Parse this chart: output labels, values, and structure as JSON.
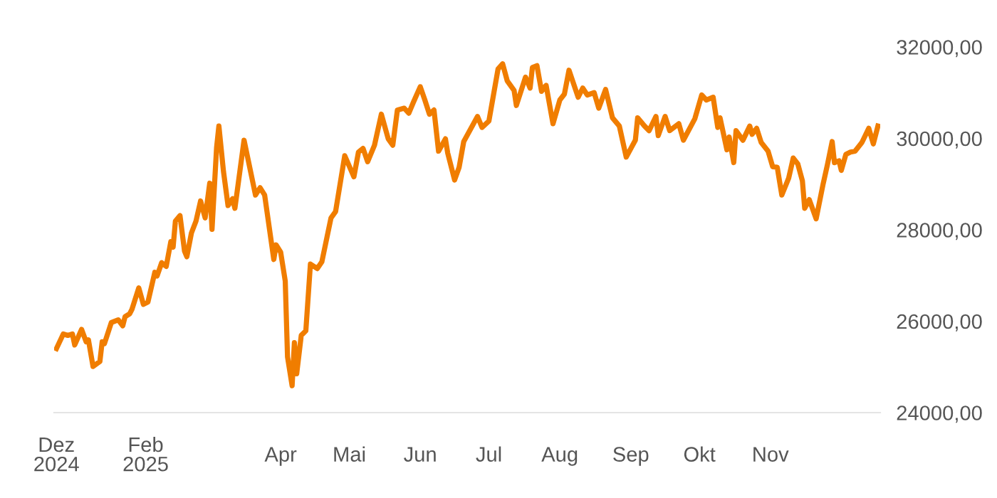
{
  "chart_data": {
    "type": "line",
    "x": [
      "2024-12-24",
      "2024-12-27",
      "2024-12-29",
      "2024-12-31",
      "2025-01-01",
      "2025-01-04",
      "2025-01-06",
      "2025-01-07",
      "2025-01-09",
      "2025-01-12",
      "2025-01-13",
      "2025-01-14",
      "2025-01-17",
      "2025-01-20",
      "2025-01-22",
      "2025-01-23",
      "2025-01-25",
      "2025-01-26",
      "2025-01-29",
      "2025-01-31",
      "2025-02-02",
      "2025-02-05",
      "2025-02-06",
      "2025-02-08",
      "2025-02-10",
      "2025-02-12",
      "2025-02-13",
      "2025-02-14",
      "2025-02-16",
      "2025-02-18",
      "2025-02-19",
      "2025-02-21",
      "2025-02-23",
      "2025-02-25",
      "2025-02-27",
      "2025-03-01",
      "2025-03-02",
      "2025-03-04",
      "2025-03-05",
      "2025-03-07",
      "2025-03-09",
      "2025-03-11",
      "2025-03-12",
      "2025-03-16",
      "2025-03-21",
      "2025-03-23",
      "2025-03-25",
      "2025-03-29",
      "2025-03-30",
      "2025-04-01",
      "2025-04-03",
      "2025-04-04",
      "2025-04-06",
      "2025-04-07",
      "2025-04-08",
      "2025-04-10",
      "2025-04-12",
      "2025-04-14",
      "2025-04-17",
      "2025-04-19",
      "2025-04-23",
      "2025-04-25",
      "2025-04-29",
      "2025-05-03",
      "2025-05-05",
      "2025-05-07",
      "2025-05-09",
      "2025-05-12",
      "2025-05-15",
      "2025-05-18",
      "2025-05-20",
      "2025-05-22",
      "2025-05-25",
      "2025-05-27",
      "2025-05-29",
      "2025-06-01",
      "2025-06-03",
      "2025-06-05",
      "2025-06-07",
      "2025-06-09",
      "2025-06-12",
      "2025-06-13",
      "2025-06-16",
      "2025-06-18",
      "2025-06-20",
      "2025-06-26",
      "2025-06-28",
      "2025-07-01",
      "2025-07-05",
      "2025-07-07",
      "2025-07-09",
      "2025-07-12",
      "2025-07-13",
      "2025-07-17",
      "2025-07-19",
      "2025-07-20",
      "2025-07-22",
      "2025-07-24",
      "2025-07-26",
      "2025-07-29",
      "2025-08-01",
      "2025-08-03",
      "2025-08-05",
      "2025-08-09",
      "2025-08-11",
      "2025-08-13",
      "2025-08-16",
      "2025-08-18",
      "2025-08-21",
      "2025-08-24",
      "2025-08-27",
      "2025-08-30",
      "2025-09-03",
      "2025-09-04",
      "2025-09-07",
      "2025-09-09",
      "2025-09-12",
      "2025-09-13",
      "2025-09-16",
      "2025-09-18",
      "2025-09-22",
      "2025-09-24",
      "2025-09-29",
      "2025-10-02",
      "2025-10-04",
      "2025-10-07",
      "2025-10-09",
      "2025-10-10",
      "2025-10-13",
      "2025-10-14",
      "2025-10-16",
      "2025-10-17",
      "2025-10-20",
      "2025-10-23",
      "2025-10-24",
      "2025-10-26",
      "2025-10-28",
      "2025-10-31",
      "2025-11-02",
      "2025-11-04",
      "2025-11-06",
      "2025-11-09",
      "2025-11-11",
      "2025-11-13",
      "2025-11-15",
      "2025-11-16",
      "2025-11-18",
      "2025-11-21",
      "2025-11-24",
      "2025-11-26",
      "2025-11-28",
      "2025-11-29",
      "2025-12-01",
      "2025-12-02",
      "2025-12-04",
      "2025-12-06",
      "2025-12-08",
      "2025-12-11",
      "2025-12-14",
      "2025-12-16",
      "2025-12-18"
    ],
    "series": [
      {
        "color": "#f07d00",
        "values": [
          25400,
          25720,
          25690,
          25720,
          25480,
          25820,
          25550,
          25590,
          25010,
          25120,
          25550,
          25510,
          25970,
          26030,
          25900,
          26100,
          26160,
          26260,
          26730,
          26370,
          26420,
          27070,
          26990,
          27280,
          27200,
          27740,
          27620,
          28190,
          28310,
          27530,
          27410,
          27930,
          28190,
          28630,
          28260,
          29020,
          28010,
          29800,
          30270,
          29280,
          28530,
          28680,
          28470,
          29960,
          28760,
          28920,
          28760,
          27350,
          27670,
          27510,
          26880,
          25220,
          24590,
          25530,
          24850,
          25690,
          25790,
          27250,
          27150,
          27300,
          28260,
          28400,
          29620,
          29160,
          29700,
          29780,
          29490,
          29850,
          30530,
          29990,
          29850,
          30620,
          30660,
          30550,
          30790,
          31130,
          30840,
          30530,
          30620,
          29720,
          29990,
          29680,
          29090,
          29370,
          29930,
          30480,
          30240,
          30380,
          31520,
          31630,
          31260,
          31050,
          30720,
          31340,
          31100,
          31550,
          31590,
          31030,
          31160,
          30320,
          30840,
          30970,
          31490,
          30900,
          31100,
          30950,
          31000,
          30660,
          31070,
          30450,
          30270,
          29590,
          29960,
          30450,
          30270,
          30170,
          30480,
          30060,
          30480,
          30170,
          30320,
          29960,
          30430,
          30950,
          30840,
          30900,
          30240,
          30450,
          29750,
          30030,
          29470,
          30170,
          29960,
          30270,
          30090,
          30220,
          29910,
          29720,
          29380,
          29370,
          28760,
          29130,
          29570,
          29440,
          29070,
          28470,
          28660,
          28240,
          28990,
          29440,
          29930,
          29470,
          29510,
          29300,
          29650,
          29700,
          29720,
          29910,
          30220,
          29880,
          30270
        ]
      }
    ],
    "xlim": [
      "2024-12-23",
      "2025-12-19"
    ],
    "xticks": [
      {
        "value": "2024-12-24",
        "label": "Dez\n2024"
      },
      {
        "value": "2025-02-01",
        "label": "Feb\n2025"
      },
      {
        "value": "2025-04-01",
        "label": "Apr"
      },
      {
        "value": "2025-05-01",
        "label": "Mai"
      },
      {
        "value": "2025-06-01",
        "label": "Jun"
      },
      {
        "value": "2025-07-01",
        "label": "Jul"
      },
      {
        "value": "2025-08-01",
        "label": "Aug"
      },
      {
        "value": "2025-09-01",
        "label": "Sep"
      },
      {
        "value": "2025-10-01",
        "label": "Okt"
      },
      {
        "value": "2025-11-01",
        "label": "Nov"
      }
    ],
    "ylim": [
      24000,
      32000
    ],
    "yticks": [
      {
        "value": 24000,
        "label": "24000,00"
      },
      {
        "value": 26000,
        "label": "26000,00"
      },
      {
        "value": 28000,
        "label": "28000,00"
      },
      {
        "value": 30000,
        "label": "30000,00"
      },
      {
        "value": 32000,
        "label": "32000,00"
      }
    ],
    "grid": false,
    "marker": "none",
    "line_style": "solid"
  }
}
